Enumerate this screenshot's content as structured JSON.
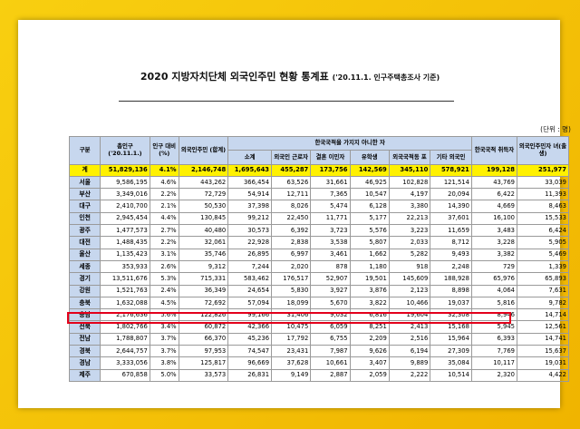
{
  "document": {
    "title_main": "2020 지방자치단체 외국인주민 현황 통계표",
    "title_sub": "('20.11.1. 인구주택총조사 기준)",
    "unit": "(단위 : 명)"
  },
  "table": {
    "headers": {
      "region": "구분",
      "total_pop": "총인구 ('20.11.1.)",
      "ratio": "인구 대비(%)",
      "foreign_total": "외국인주민 (합계)",
      "group_nonnational": "한국국적을 가지지 아니한 자",
      "subtotal": "소계",
      "workers": "외국인 근로자",
      "marriage": "결혼 이민자",
      "students": "유학생",
      "compatriots": "외국국적동 포",
      "other": "기타 외국인",
      "naturalized": "한국국적 취득자",
      "children": "외국인주민자 녀(출생)"
    },
    "rows": [
      {
        "region": "계",
        "total_pop": "51,829,136",
        "ratio": "4.1%",
        "foreign_total": "2,146,748",
        "subtotal": "1,695,643",
        "workers": "455,287",
        "marriage": "173,756",
        "students": "142,569",
        "compatriots": "345,110",
        "other": "578,921",
        "naturalized": "199,128",
        "children": "251,977"
      },
      {
        "region": "서울",
        "total_pop": "9,586,195",
        "ratio": "4.6%",
        "foreign_total": "443,262",
        "subtotal": "366,454",
        "workers": "63,526",
        "marriage": "31,661",
        "students": "46,925",
        "compatriots": "102,828",
        "other": "121,514",
        "naturalized": "43,769",
        "children": "33,039"
      },
      {
        "region": "부산",
        "total_pop": "3,349,016",
        "ratio": "2.2%",
        "foreign_total": "72,729",
        "subtotal": "54,914",
        "workers": "12,711",
        "marriage": "7,365",
        "students": "10,547",
        "compatriots": "4,197",
        "other": "20,094",
        "naturalized": "6,422",
        "children": "11,393"
      },
      {
        "region": "대구",
        "total_pop": "2,410,700",
        "ratio": "2.1%",
        "foreign_total": "50,530",
        "subtotal": "37,398",
        "workers": "8,026",
        "marriage": "5,474",
        "students": "6,128",
        "compatriots": "3,380",
        "other": "14,390",
        "naturalized": "4,669",
        "children": "8,463"
      },
      {
        "region": "인천",
        "total_pop": "2,945,454",
        "ratio": "4.4%",
        "foreign_total": "130,845",
        "subtotal": "99,212",
        "workers": "22,450",
        "marriage": "11,771",
        "students": "5,177",
        "compatriots": "22,213",
        "other": "37,601",
        "naturalized": "16,100",
        "children": "15,533"
      },
      {
        "region": "광주",
        "total_pop": "1,477,573",
        "ratio": "2.7%",
        "foreign_total": "40,480",
        "subtotal": "30,573",
        "workers": "6,392",
        "marriage": "3,723",
        "students": "5,576",
        "compatriots": "3,223",
        "other": "11,659",
        "naturalized": "3,483",
        "children": "6,424"
      },
      {
        "region": "대전",
        "total_pop": "1,488,435",
        "ratio": "2.2%",
        "foreign_total": "32,061",
        "subtotal": "22,928",
        "workers": "2,838",
        "marriage": "3,538",
        "students": "5,807",
        "compatriots": "2,033",
        "other": "8,712",
        "naturalized": "3,228",
        "children": "5,905"
      },
      {
        "region": "울산",
        "total_pop": "1,135,423",
        "ratio": "3.1%",
        "foreign_total": "35,746",
        "subtotal": "26,895",
        "workers": "6,997",
        "marriage": "3,461",
        "students": "1,662",
        "compatriots": "5,282",
        "other": "9,493",
        "naturalized": "3,382",
        "children": "5,469"
      },
      {
        "region": "세종",
        "total_pop": "353,933",
        "ratio": "2.6%",
        "foreign_total": "9,312",
        "subtotal": "7,244",
        "workers": "2,020",
        "marriage": "878",
        "students": "1,180",
        "compatriots": "918",
        "other": "2,248",
        "naturalized": "729",
        "children": "1,339"
      },
      {
        "region": "경기",
        "total_pop": "13,511,676",
        "ratio": "5.3%",
        "foreign_total": "715,331",
        "subtotal": "583,462",
        "workers": "176,517",
        "marriage": "52,907",
        "students": "19,501",
        "compatriots": "145,609",
        "other": "188,928",
        "naturalized": "65,976",
        "children": "65,893"
      },
      {
        "region": "강원",
        "total_pop": "1,521,763",
        "ratio": "2.4%",
        "foreign_total": "36,349",
        "subtotal": "24,654",
        "workers": "5,830",
        "marriage": "3,927",
        "students": "3,876",
        "compatriots": "2,123",
        "other": "8,898",
        "naturalized": "4,064",
        "children": "7,631"
      },
      {
        "region": "충북",
        "total_pop": "1,632,088",
        "ratio": "4.5%",
        "foreign_total": "72,692",
        "subtotal": "57,094",
        "workers": "18,099",
        "marriage": "5,670",
        "students": "3,822",
        "compatriots": "10,466",
        "other": "19,037",
        "naturalized": "5,816",
        "children": "9,782"
      },
      {
        "region": "충남",
        "total_pop": "2,176,636",
        "ratio": "5.6%",
        "foreign_total": "122,826",
        "subtotal": "99,166",
        "workers": "31,406",
        "marriage": "9,032",
        "students": "6,816",
        "compatriots": "19,604",
        "other": "32,308",
        "naturalized": "8,946",
        "children": "14,714"
      },
      {
        "region": "전북",
        "total_pop": "1,802,766",
        "ratio": "3.4%",
        "foreign_total": "60,872",
        "subtotal": "42,366",
        "workers": "10,475",
        "marriage": "6,059",
        "students": "8,251",
        "compatriots": "2,413",
        "other": "15,168",
        "naturalized": "5,945",
        "children": "12,561"
      },
      {
        "region": "전남",
        "total_pop": "1,788,807",
        "ratio": "3.7%",
        "foreign_total": "66,370",
        "subtotal": "45,236",
        "workers": "17,792",
        "marriage": "6,755",
        "students": "2,209",
        "compatriots": "2,516",
        "other": "15,964",
        "naturalized": "6,393",
        "children": "14,741"
      },
      {
        "region": "경북",
        "total_pop": "2,644,757",
        "ratio": "3.7%",
        "foreign_total": "97,953",
        "subtotal": "74,547",
        "workers": "23,431",
        "marriage": "7,987",
        "students": "9,626",
        "compatriots": "6,194",
        "other": "27,309",
        "naturalized": "7,769",
        "children": "15,637"
      },
      {
        "region": "경남",
        "total_pop": "3,333,056",
        "ratio": "3.8%",
        "foreign_total": "125,817",
        "subtotal": "96,669",
        "workers": "37,628",
        "marriage": "10,661",
        "students": "3,407",
        "compatriots": "9,889",
        "other": "35,084",
        "naturalized": "10,117",
        "children": "19,031"
      },
      {
        "region": "제주",
        "total_pop": "670,858",
        "ratio": "5.0%",
        "foreign_total": "33,573",
        "subtotal": "26,831",
        "workers": "9,149",
        "marriage": "2,887",
        "students": "2,059",
        "compatriots": "2,222",
        "other": "10,514",
        "naturalized": "2,320",
        "children": "4,422"
      }
    ]
  }
}
